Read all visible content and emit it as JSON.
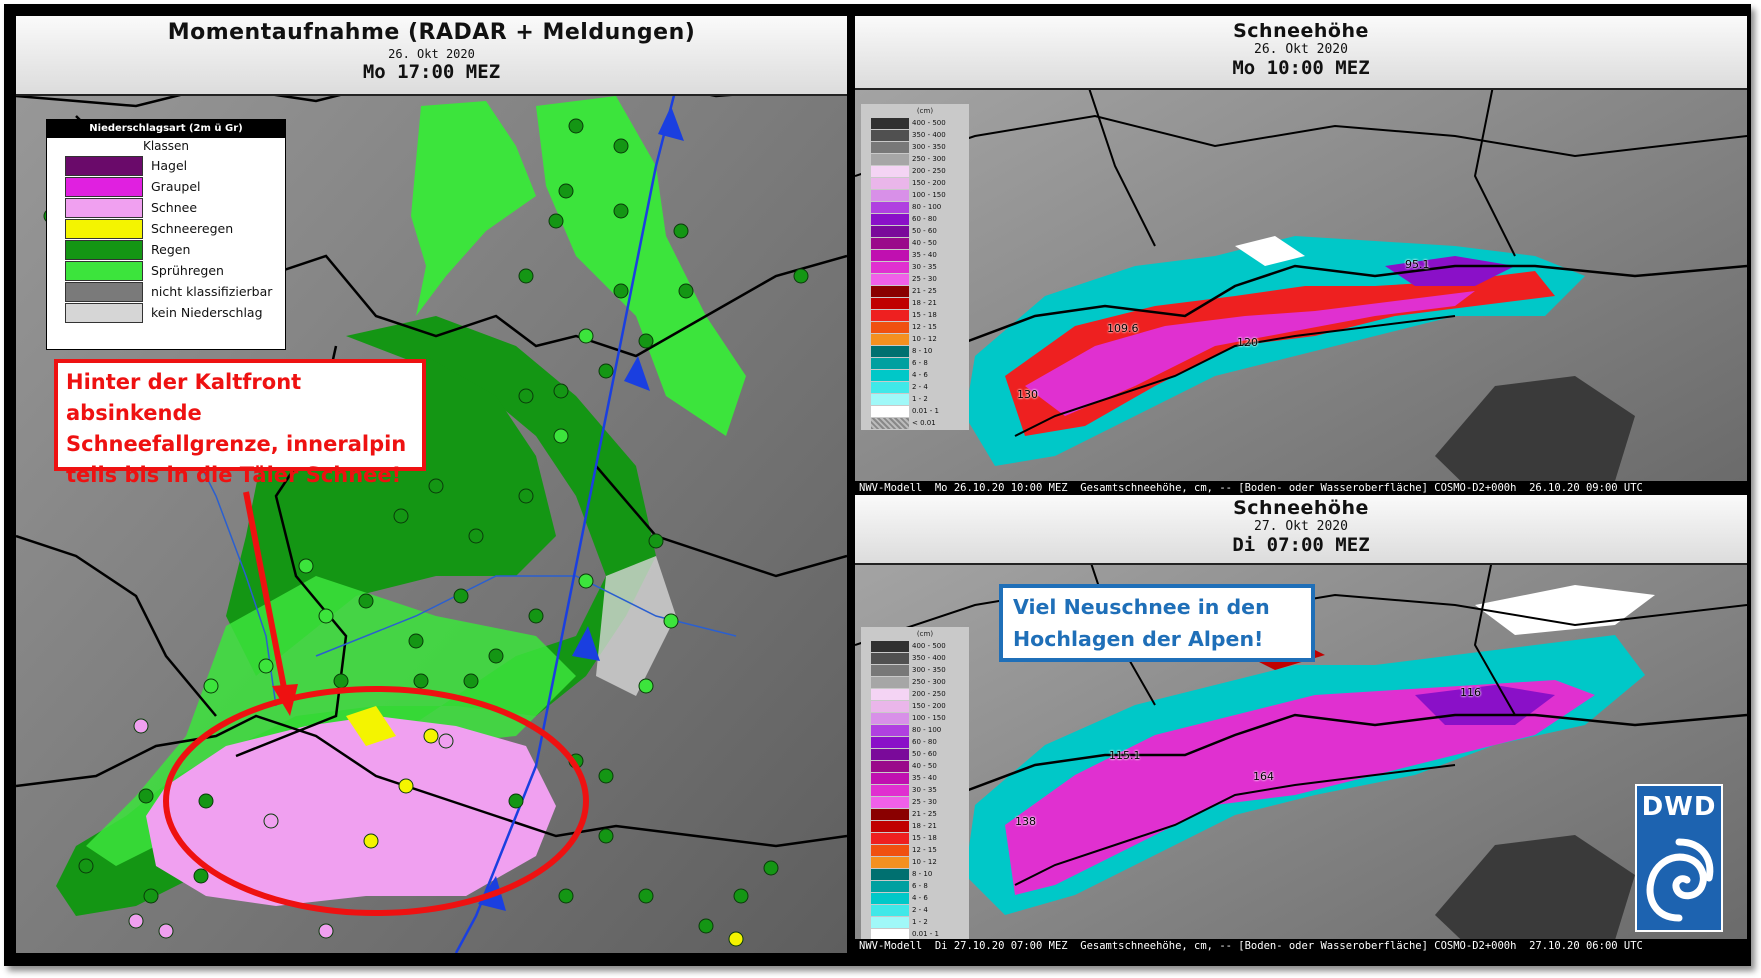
{
  "left_panel": {
    "title": "Momentaufnahme (RADAR + Meldungen)",
    "date": "26. Okt 2020",
    "time": "Mo 17:00 MEZ",
    "legend": {
      "header": "Niederschlagsart (2m ü Gr)",
      "subtitle": "Klassen",
      "items": [
        {
          "label": "Hagel",
          "color": "#6a0a6a"
        },
        {
          "label": "Graupel",
          "color": "#e020e0"
        },
        {
          "label": "Schnee",
          "color": "#f0a0f0"
        },
        {
          "label": "Schneeregen",
          "color": "#f4f400"
        },
        {
          "label": "Regen",
          "color": "#149614"
        },
        {
          "label": "Sprühregen",
          "color": "#3ce43c"
        },
        {
          "label": "nicht klassifizierbar",
          "color": "#7a7a7a"
        },
        {
          "label": "kein Niederschlag",
          "color": "#d6d6d6"
        }
      ]
    },
    "annotation": [
      "Hinter der Kaltfront absinkende",
      "Schneefallgrenze, inneralpin",
      "teils bis in die Täler Schnee!"
    ]
  },
  "right_top": {
    "title": "Schneehöhe",
    "date": "26. Okt 2020",
    "time": "Mo 10:00 MEZ",
    "footer": "NWV-Modell  Mo 26.10.20 10:00 MEZ  Gesamtschneehöhe, cm, -- [Boden- oder Wasseroberfläche] COSMO-D2+000h  26.10.20 09:00 UTC",
    "peaks": [
      "95.1",
      "109.6",
      "120",
      "130"
    ]
  },
  "right_bottom": {
    "title": "Schneehöhe",
    "date": "27. Okt 2020",
    "time": "Di 07:00 MEZ",
    "footer": "NWV-Modell  Di 27.10.20 07:00 MEZ  Gesamtschneehöhe, cm, -- [Boden- oder Wasseroberfläche] COSMO-D2+000h  27.10.20 06:00 UTC",
    "peaks": [
      "116",
      "115.1",
      "164",
      "138"
    ],
    "annotation": [
      "Viel Neuschnee in den",
      "Hochlagen der Alpen!"
    ]
  },
  "snow_legend": {
    "unit": "(cm)",
    "items": [
      {
        "label": "400 - 500",
        "color": "#303030"
      },
      {
        "label": "350 - 400",
        "color": "#505050"
      },
      {
        "label": "300 - 350",
        "color": "#787878"
      },
      {
        "label": "250 - 300",
        "color": "#a6a6a6"
      },
      {
        "label": "200 - 250",
        "color": "#f4d4f4"
      },
      {
        "label": "150 - 200",
        "color": "#eab6ea"
      },
      {
        "label": "100 - 150",
        "color": "#d890e8"
      },
      {
        "label": "80 - 100",
        "color": "#b040e0"
      },
      {
        "label": "60 - 80",
        "color": "#8a10c8"
      },
      {
        "label": "50 - 60",
        "color": "#7a0a9a"
      },
      {
        "label": "40 - 50",
        "color": "#9a0a8a"
      },
      {
        "label": "35 - 40",
        "color": "#c010b0"
      },
      {
        "label": "30 - 35",
        "color": "#e030d0"
      },
      {
        "label": "25 - 30",
        "color": "#f060e8"
      },
      {
        "label": "21 - 25",
        "color": "#8a0000"
      },
      {
        "label": "18 - 21",
        "color": "#c00000"
      },
      {
        "label": "15 - 18",
        "color": "#ee2020"
      },
      {
        "label": "12 - 15",
        "color": "#f05010"
      },
      {
        "label": "10 - 12",
        "color": "#f49020"
      },
      {
        "label": "8 - 10",
        "color": "#007070"
      },
      {
        "label": "6 - 8",
        "color": "#00a0a0"
      },
      {
        "label": "4 - 6",
        "color": "#00c8c8"
      },
      {
        "label": "2 - 4",
        "color": "#40e8e8"
      },
      {
        "label": "1 - 2",
        "color": "#a0f8f8"
      },
      {
        "label": "0.01 - 1",
        "color": "#ffffff"
      },
      {
        "label": "< 0.01",
        "color": "#9a9a9a"
      }
    ]
  },
  "logo": {
    "text": "DWD"
  },
  "colors": {
    "annotation_red": "#ee1111",
    "annotation_blue": "#1f6fb8",
    "front_line": "#1a3fe0"
  }
}
